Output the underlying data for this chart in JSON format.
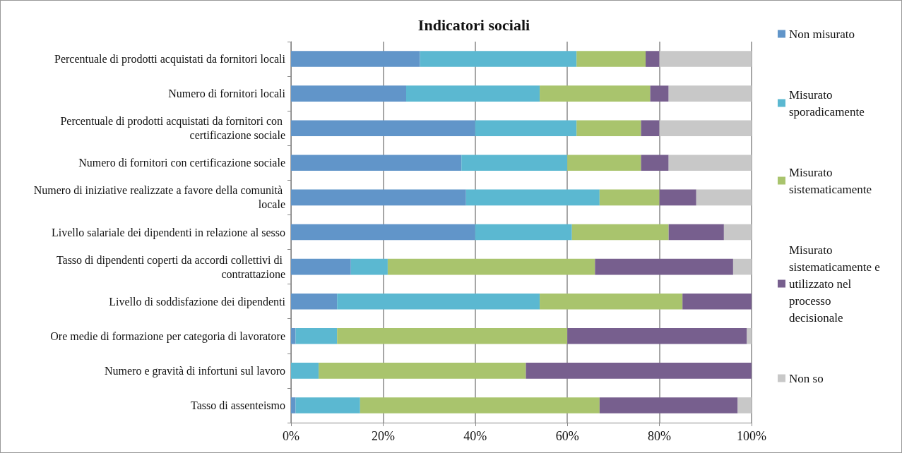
{
  "chart_data": {
    "type": "bar",
    "title": "Indicatori sociali",
    "orientation": "horizontal",
    "stacked": true,
    "categories": [
      "Percentuale di prodotti acquistati da fornitori locali",
      "Numero di fornitori locali",
      "Percentuale di prodotti acquistati da fornitori con certificazione sociale",
      "Numero di fornitori con certificazione sociale",
      "Numero di iniziative realizzate a favore della comunità locale",
      "Livello salariale dei dipendenti in relazione al sesso",
      "Tasso di dipendenti coperti da accordi collettivi di contrattazione",
      "Livello di soddisfazione dei dipendenti",
      "Ore medie di formazione per categoria di lavoratore",
      "Numero e gravità di infortuni sul lavoro",
      "Tasso di assenteismo"
    ],
    "series": [
      {
        "name": "Non misurato",
        "color": "#6195c9",
        "values": [
          28,
          25,
          40,
          37,
          38,
          40,
          13,
          10,
          1,
          0,
          1
        ]
      },
      {
        "name": "Misurato sporadicamente",
        "color": "#5bb8d1",
        "values": [
          34,
          29,
          22,
          23,
          29,
          21,
          8,
          44,
          9,
          6,
          14
        ]
      },
      {
        "name": "Misurato sistematicamente",
        "color": "#a9c46d",
        "values": [
          15,
          24,
          14,
          16,
          13,
          21,
          45,
          31,
          50,
          45,
          52
        ]
      },
      {
        "name": "Misurato sistematicamente e utilizzato nel processo decisionale",
        "color": "#775f8e",
        "values": [
          3,
          4,
          4,
          6,
          8,
          12,
          30,
          15,
          39,
          49,
          30
        ]
      },
      {
        "name": "Non so",
        "color": "#c8c8c8",
        "values": [
          20,
          18,
          20,
          18,
          12,
          6,
          4,
          0,
          1,
          0,
          3
        ]
      }
    ],
    "xlim": [
      0,
      100
    ],
    "xticks": [
      {
        "value": 0,
        "label": "0%"
      },
      {
        "value": 20,
        "label": "20%"
      },
      {
        "value": 40,
        "label": "40%"
      },
      {
        "value": 60,
        "label": "60%"
      },
      {
        "value": 80,
        "label": "80%"
      },
      {
        "value": 100,
        "label": "100%"
      }
    ],
    "grid": "x",
    "legend": "right"
  }
}
